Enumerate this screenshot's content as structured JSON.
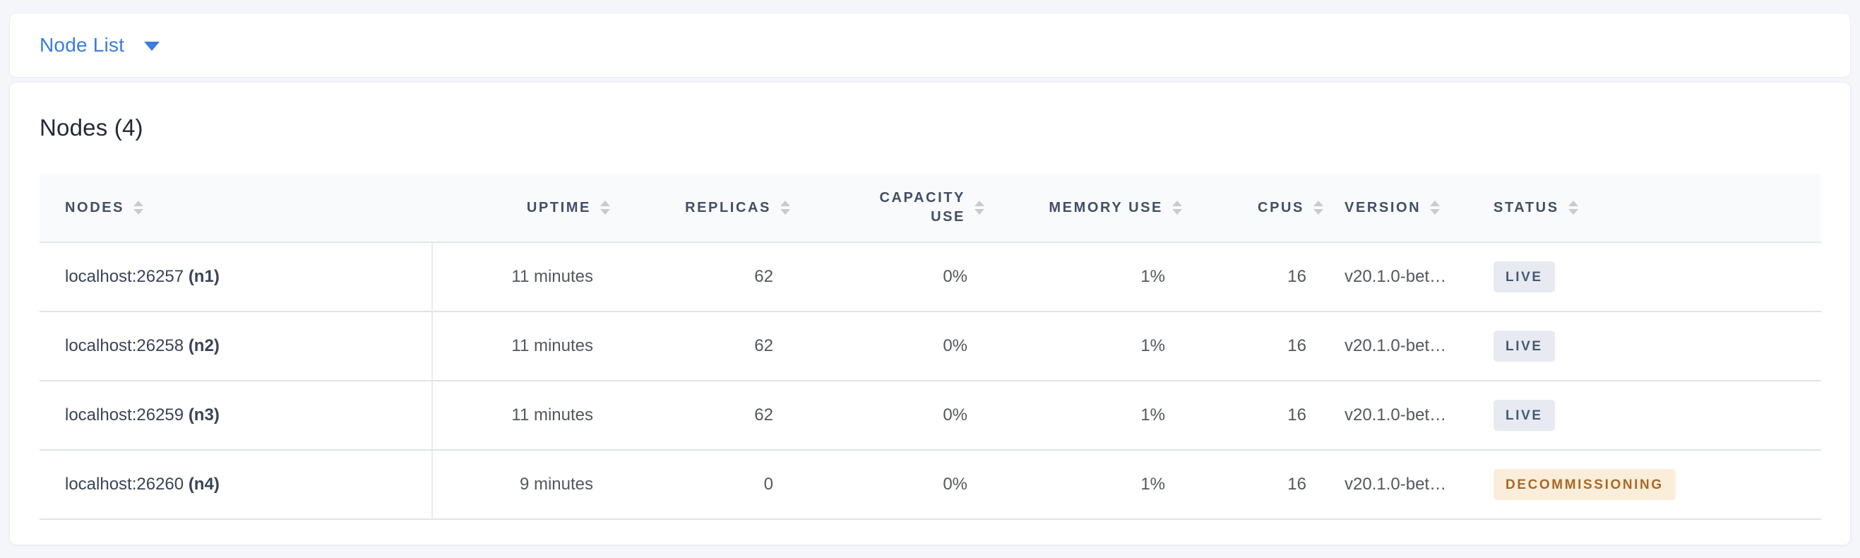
{
  "nav": {
    "dropdown": {
      "label": "Node List"
    }
  },
  "main": {
    "title": "Nodes (4)"
  },
  "table": {
    "columns": [
      {
        "key": "node",
        "label": "NODES",
        "align": "left",
        "sortable": true
      },
      {
        "key": "uptime",
        "label": "UPTIME",
        "align": "right",
        "sortable": true
      },
      {
        "key": "replicas",
        "label": "REPLICAS",
        "align": "right",
        "sortable": true
      },
      {
        "key": "capacity_use",
        "label": "CAPACITY USE",
        "align": "right",
        "sortable": true,
        "wrap": true
      },
      {
        "key": "memory_use",
        "label": "MEMORY USE",
        "align": "right",
        "sortable": true
      },
      {
        "key": "cpus",
        "label": "CPUS",
        "align": "right",
        "sortable": true
      },
      {
        "key": "version",
        "label": "VERSION",
        "align": "left",
        "sortable": true
      },
      {
        "key": "status",
        "label": "STATUS",
        "align": "left",
        "sortable": true
      }
    ],
    "rows": [
      {
        "node": "localhost:26257",
        "node_id": "(n1)",
        "uptime": "11 minutes",
        "replicas": "62",
        "capacity_use": "0%",
        "memory_use": "1%",
        "cpus": "16",
        "version": "v20.1.0-bet…",
        "status": "LIVE",
        "status_type": "live"
      },
      {
        "node": "localhost:26258",
        "node_id": "(n2)",
        "uptime": "11 minutes",
        "replicas": "62",
        "capacity_use": "0%",
        "memory_use": "1%",
        "cpus": "16",
        "version": "v20.1.0-bet…",
        "status": "LIVE",
        "status_type": "live"
      },
      {
        "node": "localhost:26259",
        "node_id": "(n3)",
        "uptime": "11 minutes",
        "replicas": "62",
        "capacity_use": "0%",
        "memory_use": "1%",
        "cpus": "16",
        "version": "v20.1.0-bet…",
        "status": "LIVE",
        "status_type": "live"
      },
      {
        "node": "localhost:26260",
        "node_id": "(n4)",
        "uptime": "9 minutes",
        "replicas": "0",
        "capacity_use": "0%",
        "memory_use": "1%",
        "cpus": "16",
        "version": "v20.1.0-bet…",
        "status": "DECOMMISSIONING",
        "status_type": "decommissioning"
      }
    ]
  },
  "colors": {
    "accent_blue": "#3A7CE1",
    "page_bg": "#F4F6FA",
    "card_bg": "#FFFFFF",
    "header_bg": "#F9FAFB",
    "header_text": "#414E66",
    "body_text": "#53575E",
    "node_text": "#3A4357",
    "row_border": "#DEE3ED",
    "sort_arrow": "#C6CBD4",
    "badge_live_bg": "#E7EAF1",
    "badge_live_text": "#475872",
    "badge_decommissioning_bg": "#FAEEDB",
    "badge_decommissioning_text": "#A96824"
  }
}
